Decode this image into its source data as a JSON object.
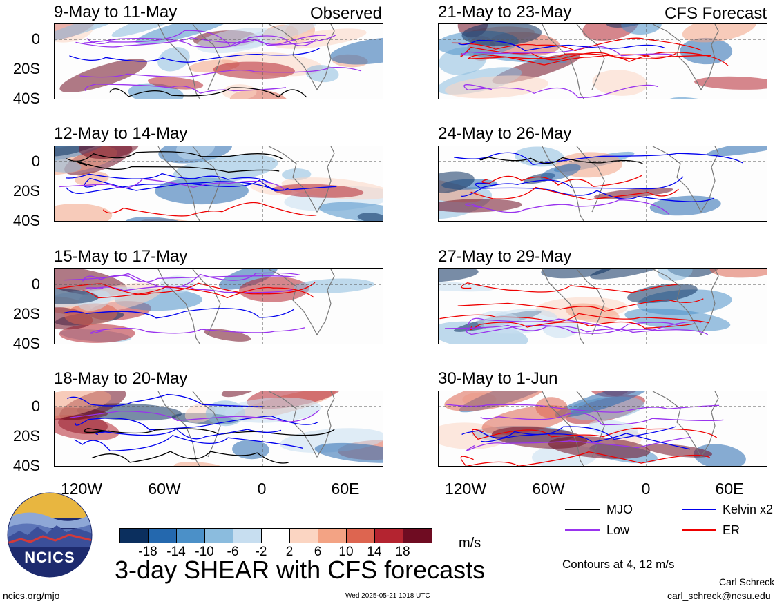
{
  "panels_left": [
    {
      "title": "9-May to 11-May",
      "corner": "Observed"
    },
    {
      "title": "12-May to 14-May",
      "corner": ""
    },
    {
      "title": "15-May to 17-May",
      "corner": ""
    },
    {
      "title": "18-May to 20-May",
      "corner": ""
    }
  ],
  "panels_right": [
    {
      "title": "21-May to 23-May",
      "corner": "CFS Forecast"
    },
    {
      "title": "24-May to 26-May",
      "corner": ""
    },
    {
      "title": "27-May to 29-May",
      "corner": ""
    },
    {
      "title": "30-May to 1-Jun",
      "corner": ""
    }
  ],
  "y_axis_labels": [
    "0",
    "20S",
    "40S"
  ],
  "x_axis_labels": [
    "120W",
    "60W",
    "0",
    "60E"
  ],
  "colorbar": {
    "colors": [
      "#0b2f5e",
      "#2468ae",
      "#4b90c8",
      "#8bbcde",
      "#c7def0",
      "#ffffff",
      "#fbd5c2",
      "#f3a384",
      "#dd6550",
      "#b42430",
      "#6f0c22"
    ],
    "ticks": [
      "-18",
      "-14",
      "-10",
      "-6",
      "-2",
      "2",
      "6",
      "10",
      "14",
      "18"
    ],
    "units": "m/s"
  },
  "legend": [
    {
      "label": "MJO",
      "color": "#000000"
    },
    {
      "label": "Kelvin x2",
      "color": "#0000ee"
    },
    {
      "label": "Low",
      "color": "#9933ee"
    },
    {
      "label": "ER",
      "color": "#ee0000"
    }
  ],
  "contours_note": "Contours at 4, 12 m/s",
  "main_title": "3-day SHEAR with CFS forecasts",
  "logo_text": "NCICS",
  "website": "ncics.org/mjo",
  "timestamp": "Wed 2025-05-21 1018 UTC",
  "author": "Carl Schreck",
  "email": "carl_schreck@ncsu.edu"
}
